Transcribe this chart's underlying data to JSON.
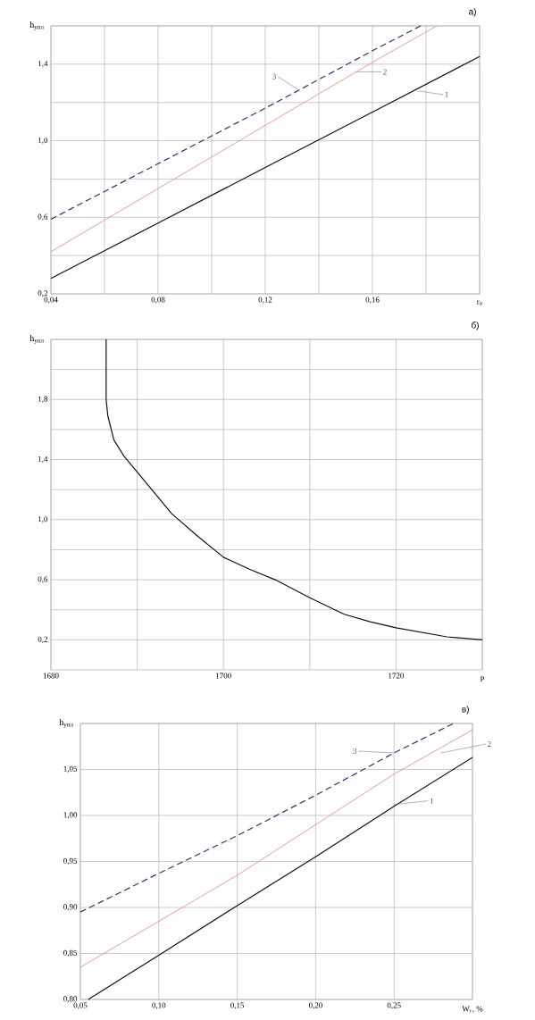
{
  "chart_data": [
    {
      "type": "line",
      "title": "а)",
      "xlabel": "r$_{0}$",
      "ylabel": "h$_{упл}$",
      "xlim": [
        0.04,
        0.2
      ],
      "ylim": [
        0.2,
        1.6
      ],
      "xticks": [
        {
          "value": 0.04,
          "label": "0,04"
        },
        {
          "value": 0.06,
          "label": null
        },
        {
          "value": 0.08,
          "label": "0,08"
        },
        {
          "value": 0.1,
          "label": null
        },
        {
          "value": 0.12,
          "label": "0,12"
        },
        {
          "value": 0.14,
          "label": null
        },
        {
          "value": 0.16,
          "label": "0,16"
        },
        {
          "value": 0.18,
          "label": null
        },
        {
          "value": 0.2,
          "label": null
        }
      ],
      "yticks": [
        {
          "value": 0.2,
          "label": "0,2"
        },
        {
          "value": 0.4,
          "label": null
        },
        {
          "value": 0.6,
          "label": "0,6"
        },
        {
          "value": 0.8,
          "label": null
        },
        {
          "value": 1.0,
          "label": "1,0"
        },
        {
          "value": 1.2,
          "label": null
        },
        {
          "value": 1.4,
          "label": "1,4"
        },
        {
          "value": 1.6,
          "label": null
        }
      ],
      "grid": true,
      "series": [
        {
          "color": "#111111",
          "line_style": "solid",
          "x": [
            0.04,
            0.08,
            0.12,
            0.16,
            0.2
          ],
          "values": [
            0.28,
            0.57,
            0.86,
            1.15,
            1.44
          ]
        },
        {
          "color": "#f08080",
          "line_style": "solid",
          "x": [
            0.04,
            0.08,
            0.12,
            0.16,
            0.184
          ],
          "values": [
            0.42,
            0.75,
            1.08,
            1.41,
            1.6
          ]
        },
        {
          "color": "#23357a",
          "line_style": "dashed",
          "x": [
            0.04,
            0.08,
            0.12,
            0.16,
            0.178
          ],
          "values": [
            0.59,
            0.88,
            1.17,
            1.47,
            1.6
          ]
        }
      ],
      "annotations": [
        {
          "text": "1",
          "x": 0.177,
          "y": 1.26
        },
        {
          "text": "2",
          "x": 0.154,
          "y": 1.36
        },
        {
          "text": "3",
          "x": 0.132,
          "y": 1.27
        }
      ]
    },
    {
      "type": "line",
      "title": "б)",
      "xlabel": "P",
      "ylabel": "h$_{упл}$",
      "xlim": [
        1680,
        1730
      ],
      "ylim": [
        0.0,
        2.2
      ],
      "xticks": [
        {
          "value": 1680,
          "label": "1680"
        },
        {
          "value": 1690,
          "label": null
        },
        {
          "value": 1700,
          "label": "1700"
        },
        {
          "value": 1710,
          "label": null
        },
        {
          "value": 1720,
          "label": "1720"
        },
        {
          "value": 1730,
          "label": null
        }
      ],
      "yticks": [
        {
          "value": 0.2,
          "label": "0,2"
        },
        {
          "value": 0.4,
          "label": null
        },
        {
          "value": 0.6,
          "label": "0,6"
        },
        {
          "value": 0.8,
          "label": null
        },
        {
          "value": 1.0,
          "label": "1,0"
        },
        {
          "value": 1.2,
          "label": null
        },
        {
          "value": 1.4,
          "label": "1,4"
        },
        {
          "value": 1.6,
          "label": null
        },
        {
          "value": 1.8,
          "label": "1,8"
        },
        {
          "value": 2.0,
          "label": null
        },
        {
          "value": 2.2,
          "label": null
        }
      ],
      "grid": true,
      "series": [
        {
          "color": "#111111",
          "line_style": "solid",
          "x": [
            1686.4,
            1686.4,
            1686.6,
            1687.3,
            1688.5,
            1690.1,
            1694.0,
            1697,
            1700,
            1703,
            1706,
            1710,
            1714,
            1717,
            1720,
            1725.9,
            1730
          ],
          "values": [
            2.2,
            1.8,
            1.69,
            1.53,
            1.42,
            1.31,
            1.04,
            0.89,
            0.75,
            0.67,
            0.6,
            0.48,
            0.37,
            0.32,
            0.28,
            0.22,
            0.2
          ]
        }
      ]
    },
    {
      "type": "line",
      "title": "в)",
      "xlabel": "W$_{г}$, %",
      "ylabel": "h$_{упл}$",
      "xlim": [
        0.05,
        0.3
      ],
      "ylim": [
        0.8,
        1.1
      ],
      "xticks": [
        {
          "value": 0.05,
          "label": "0,05"
        },
        {
          "value": 0.1,
          "label": "0,10"
        },
        {
          "value": 0.15,
          "label": "0,15"
        },
        {
          "value": 0.2,
          "label": "0,20"
        },
        {
          "value": 0.25,
          "label": "0,25"
        },
        {
          "value": 0.3,
          "label": null
        }
      ],
      "yticks": [
        {
          "value": 0.8,
          "label": "0,80"
        },
        {
          "value": 0.85,
          "label": "0,85"
        },
        {
          "value": 0.9,
          "label": "0,90"
        },
        {
          "value": 0.95,
          "label": "0,95"
        },
        {
          "value": 1.0,
          "label": "1,00"
        },
        {
          "value": 1.05,
          "label": "1,05"
        },
        {
          "value": 1.1,
          "label": null
        }
      ],
      "grid": true,
      "series": [
        {
          "color": "#111111",
          "line_style": "solid",
          "x": [
            0.055,
            0.1,
            0.15,
            0.2,
            0.25,
            0.3
          ],
          "values": [
            0.8,
            0.848,
            0.902,
            0.955,
            1.01,
            1.063
          ]
        },
        {
          "color": "#f08080",
          "line_style": "solid",
          "x": [
            0.05,
            0.1,
            0.15,
            0.2,
            0.25,
            0.3
          ],
          "values": [
            0.835,
            0.885,
            0.935,
            0.99,
            1.045,
            1.093
          ]
        },
        {
          "color": "#23357a",
          "line_style": "dashed",
          "x": [
            0.05,
            0.1,
            0.15,
            0.2,
            0.25,
            0.288
          ],
          "values": [
            0.895,
            0.937,
            0.978,
            1.022,
            1.068,
            1.1
          ]
        }
      ],
      "annotations": [
        {
          "text": "1",
          "x": 0.25,
          "y": 1.012
        },
        {
          "text": "2",
          "x": 0.28,
          "y": 1.068
        },
        {
          "text": "3",
          "x": 0.25,
          "y": 1.068
        }
      ]
    }
  ]
}
